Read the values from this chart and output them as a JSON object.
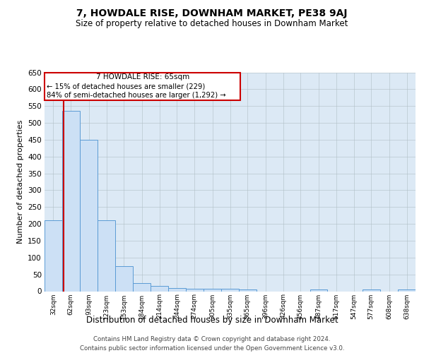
{
  "title": "7, HOWDALE RISE, DOWNHAM MARKET, PE38 9AJ",
  "subtitle": "Size of property relative to detached houses in Downham Market",
  "xlabel": "Distribution of detached houses by size in Downham Market",
  "ylabel": "Number of detached properties",
  "footer_line1": "Contains HM Land Registry data © Crown copyright and database right 2024.",
  "footer_line2": "Contains public sector information licensed under the Open Government Licence v3.0.",
  "annotation_line1": "7 HOWDALE RISE: 65sqm",
  "annotation_line2": "← 15% of detached houses are smaller (229)",
  "annotation_line3": "84% of semi-detached houses are larger (1,292) →",
  "property_size_sqm": 65,
  "bar_color": "#cce0f5",
  "bar_edge_color": "#5b9bd5",
  "red_line_color": "#cc0000",
  "annotation_box_color": "#ffffff",
  "annotation_box_edge_color": "#cc0000",
  "plot_bg_color": "#dce9f5",
  "background_color": "#ffffff",
  "grid_color": "#b0bec5",
  "bins": [
    32,
    62,
    93,
    123,
    153,
    184,
    214,
    244,
    274,
    305,
    335,
    365,
    396,
    426,
    456,
    487,
    517,
    547,
    577,
    608,
    638
  ],
  "counts": [
    210,
    535,
    450,
    210,
    75,
    25,
    15,
    10,
    7,
    7,
    7,
    5,
    0,
    0,
    0,
    5,
    0,
    0,
    5,
    0,
    5
  ],
  "ylim": [
    0,
    650
  ],
  "yticks": [
    0,
    50,
    100,
    150,
    200,
    250,
    300,
    350,
    400,
    450,
    500,
    550,
    600,
    650
  ]
}
